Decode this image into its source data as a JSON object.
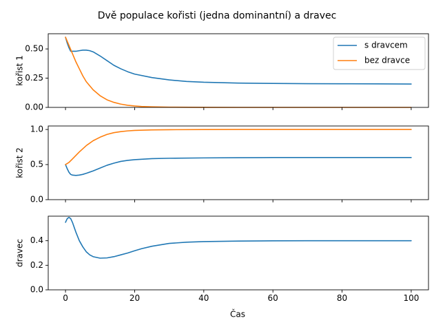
{
  "figure": {
    "suptitle": "Dvě populace kořisti (jedna dominantní) a dravec",
    "xlabel": "Čas"
  },
  "legend": {
    "placement": "top-right",
    "entries": [
      {
        "name": "s dravcem",
        "color": "#1f77b4"
      },
      {
        "name": "bez dravce",
        "color": "#ff7f0e"
      }
    ]
  },
  "chart_data": [
    {
      "type": "line",
      "ylabel": "kořist 1",
      "xlim": [
        -5,
        105
      ],
      "ylim": [
        0,
        0.63
      ],
      "xticks": [
        0,
        20,
        40,
        60,
        80,
        100
      ],
      "yticks": [
        0.0,
        0.25,
        0.5
      ],
      "ytick_labels": [
        "0.00",
        "0.25",
        "0.50"
      ],
      "show_xtick_labels": false,
      "series": [
        {
          "name": "s dravcem",
          "color": "#1f77b4",
          "x": [
            0,
            0.5,
            1,
            1.5,
            2,
            3,
            4,
            5,
            6,
            7,
            8,
            10,
            12,
            14,
            16,
            18,
            20,
            25,
            30,
            35,
            40,
            50,
            60,
            70,
            80,
            90,
            100
          ],
          "y": [
            0.6,
            0.55,
            0.51,
            0.48,
            0.48,
            0.48,
            0.485,
            0.49,
            0.49,
            0.485,
            0.475,
            0.44,
            0.4,
            0.36,
            0.33,
            0.305,
            0.285,
            0.255,
            0.235,
            0.222,
            0.215,
            0.208,
            0.205,
            0.203,
            0.202,
            0.201,
            0.2
          ]
        },
        {
          "name": "bez dravce",
          "color": "#ff7f0e",
          "x": [
            0,
            1,
            2,
            3,
            4,
            5,
            6,
            8,
            10,
            12,
            14,
            16,
            18,
            20,
            22,
            25,
            30,
            40,
            50,
            60,
            70,
            80,
            90,
            100
          ],
          "y": [
            0.6,
            0.53,
            0.46,
            0.39,
            0.33,
            0.27,
            0.22,
            0.15,
            0.1,
            0.065,
            0.043,
            0.028,
            0.018,
            0.012,
            0.008,
            0.005,
            0.002,
            0.0005,
            0,
            0,
            0,
            0,
            0,
            0
          ]
        }
      ]
    },
    {
      "type": "line",
      "ylabel": "kořist 2",
      "xlim": [
        -5,
        105
      ],
      "ylim": [
        0,
        1.05
      ],
      "xticks": [
        0,
        20,
        40,
        60,
        80,
        100
      ],
      "yticks": [
        0.0,
        0.5,
        1.0
      ],
      "ytick_labels": [
        "0.0",
        "0.5",
        "1.0"
      ],
      "show_xtick_labels": false,
      "series": [
        {
          "name": "s dravcem",
          "color": "#1f77b4",
          "x": [
            0,
            0.5,
            1,
            1.5,
            2,
            3,
            4,
            5,
            6,
            8,
            10,
            12,
            14,
            16,
            18,
            20,
            25,
            30,
            40,
            50,
            60,
            70,
            80,
            90,
            100
          ],
          "y": [
            0.5,
            0.44,
            0.39,
            0.36,
            0.35,
            0.345,
            0.35,
            0.36,
            0.375,
            0.41,
            0.45,
            0.49,
            0.52,
            0.545,
            0.56,
            0.57,
            0.585,
            0.59,
            0.595,
            0.598,
            0.6,
            0.6,
            0.6,
            0.6,
            0.6
          ]
        },
        {
          "name": "bez dravce",
          "color": "#ff7f0e",
          "x": [
            0,
            1,
            2,
            3,
            4,
            6,
            8,
            10,
            12,
            14,
            16,
            18,
            20,
            25,
            30,
            40,
            50,
            60,
            70,
            80,
            90,
            100
          ],
          "y": [
            0.5,
            0.53,
            0.58,
            0.63,
            0.68,
            0.77,
            0.84,
            0.89,
            0.93,
            0.955,
            0.97,
            0.98,
            0.987,
            0.994,
            0.997,
            0.999,
            1.0,
            1.0,
            1.0,
            1.0,
            1.0,
            1.0
          ]
        }
      ]
    },
    {
      "type": "line",
      "ylabel": "dravec",
      "xlabel": "Čas",
      "xlim": [
        -5,
        105
      ],
      "ylim": [
        0,
        0.6
      ],
      "xticks": [
        0,
        20,
        40,
        60,
        80,
        100
      ],
      "yticks": [
        0.0,
        0.2,
        0.4
      ],
      "ytick_labels": [
        "0.0",
        "0.2",
        "0.4"
      ],
      "show_xtick_labels": true,
      "series": [
        {
          "name": "s dravcem",
          "color": "#1f77b4",
          "x": [
            0,
            0.5,
            1,
            1.5,
            2,
            3,
            4,
            5,
            6,
            7,
            8,
            10,
            12,
            14,
            16,
            18,
            20,
            22,
            25,
            30,
            35,
            40,
            50,
            60,
            70,
            80,
            90,
            100
          ],
          "y": [
            0.55,
            0.58,
            0.59,
            0.58,
            0.55,
            0.47,
            0.4,
            0.35,
            0.31,
            0.285,
            0.27,
            0.258,
            0.26,
            0.27,
            0.285,
            0.3,
            0.318,
            0.335,
            0.355,
            0.378,
            0.388,
            0.393,
            0.397,
            0.399,
            0.4,
            0.4,
            0.4,
            0.4
          ]
        }
      ]
    }
  ]
}
